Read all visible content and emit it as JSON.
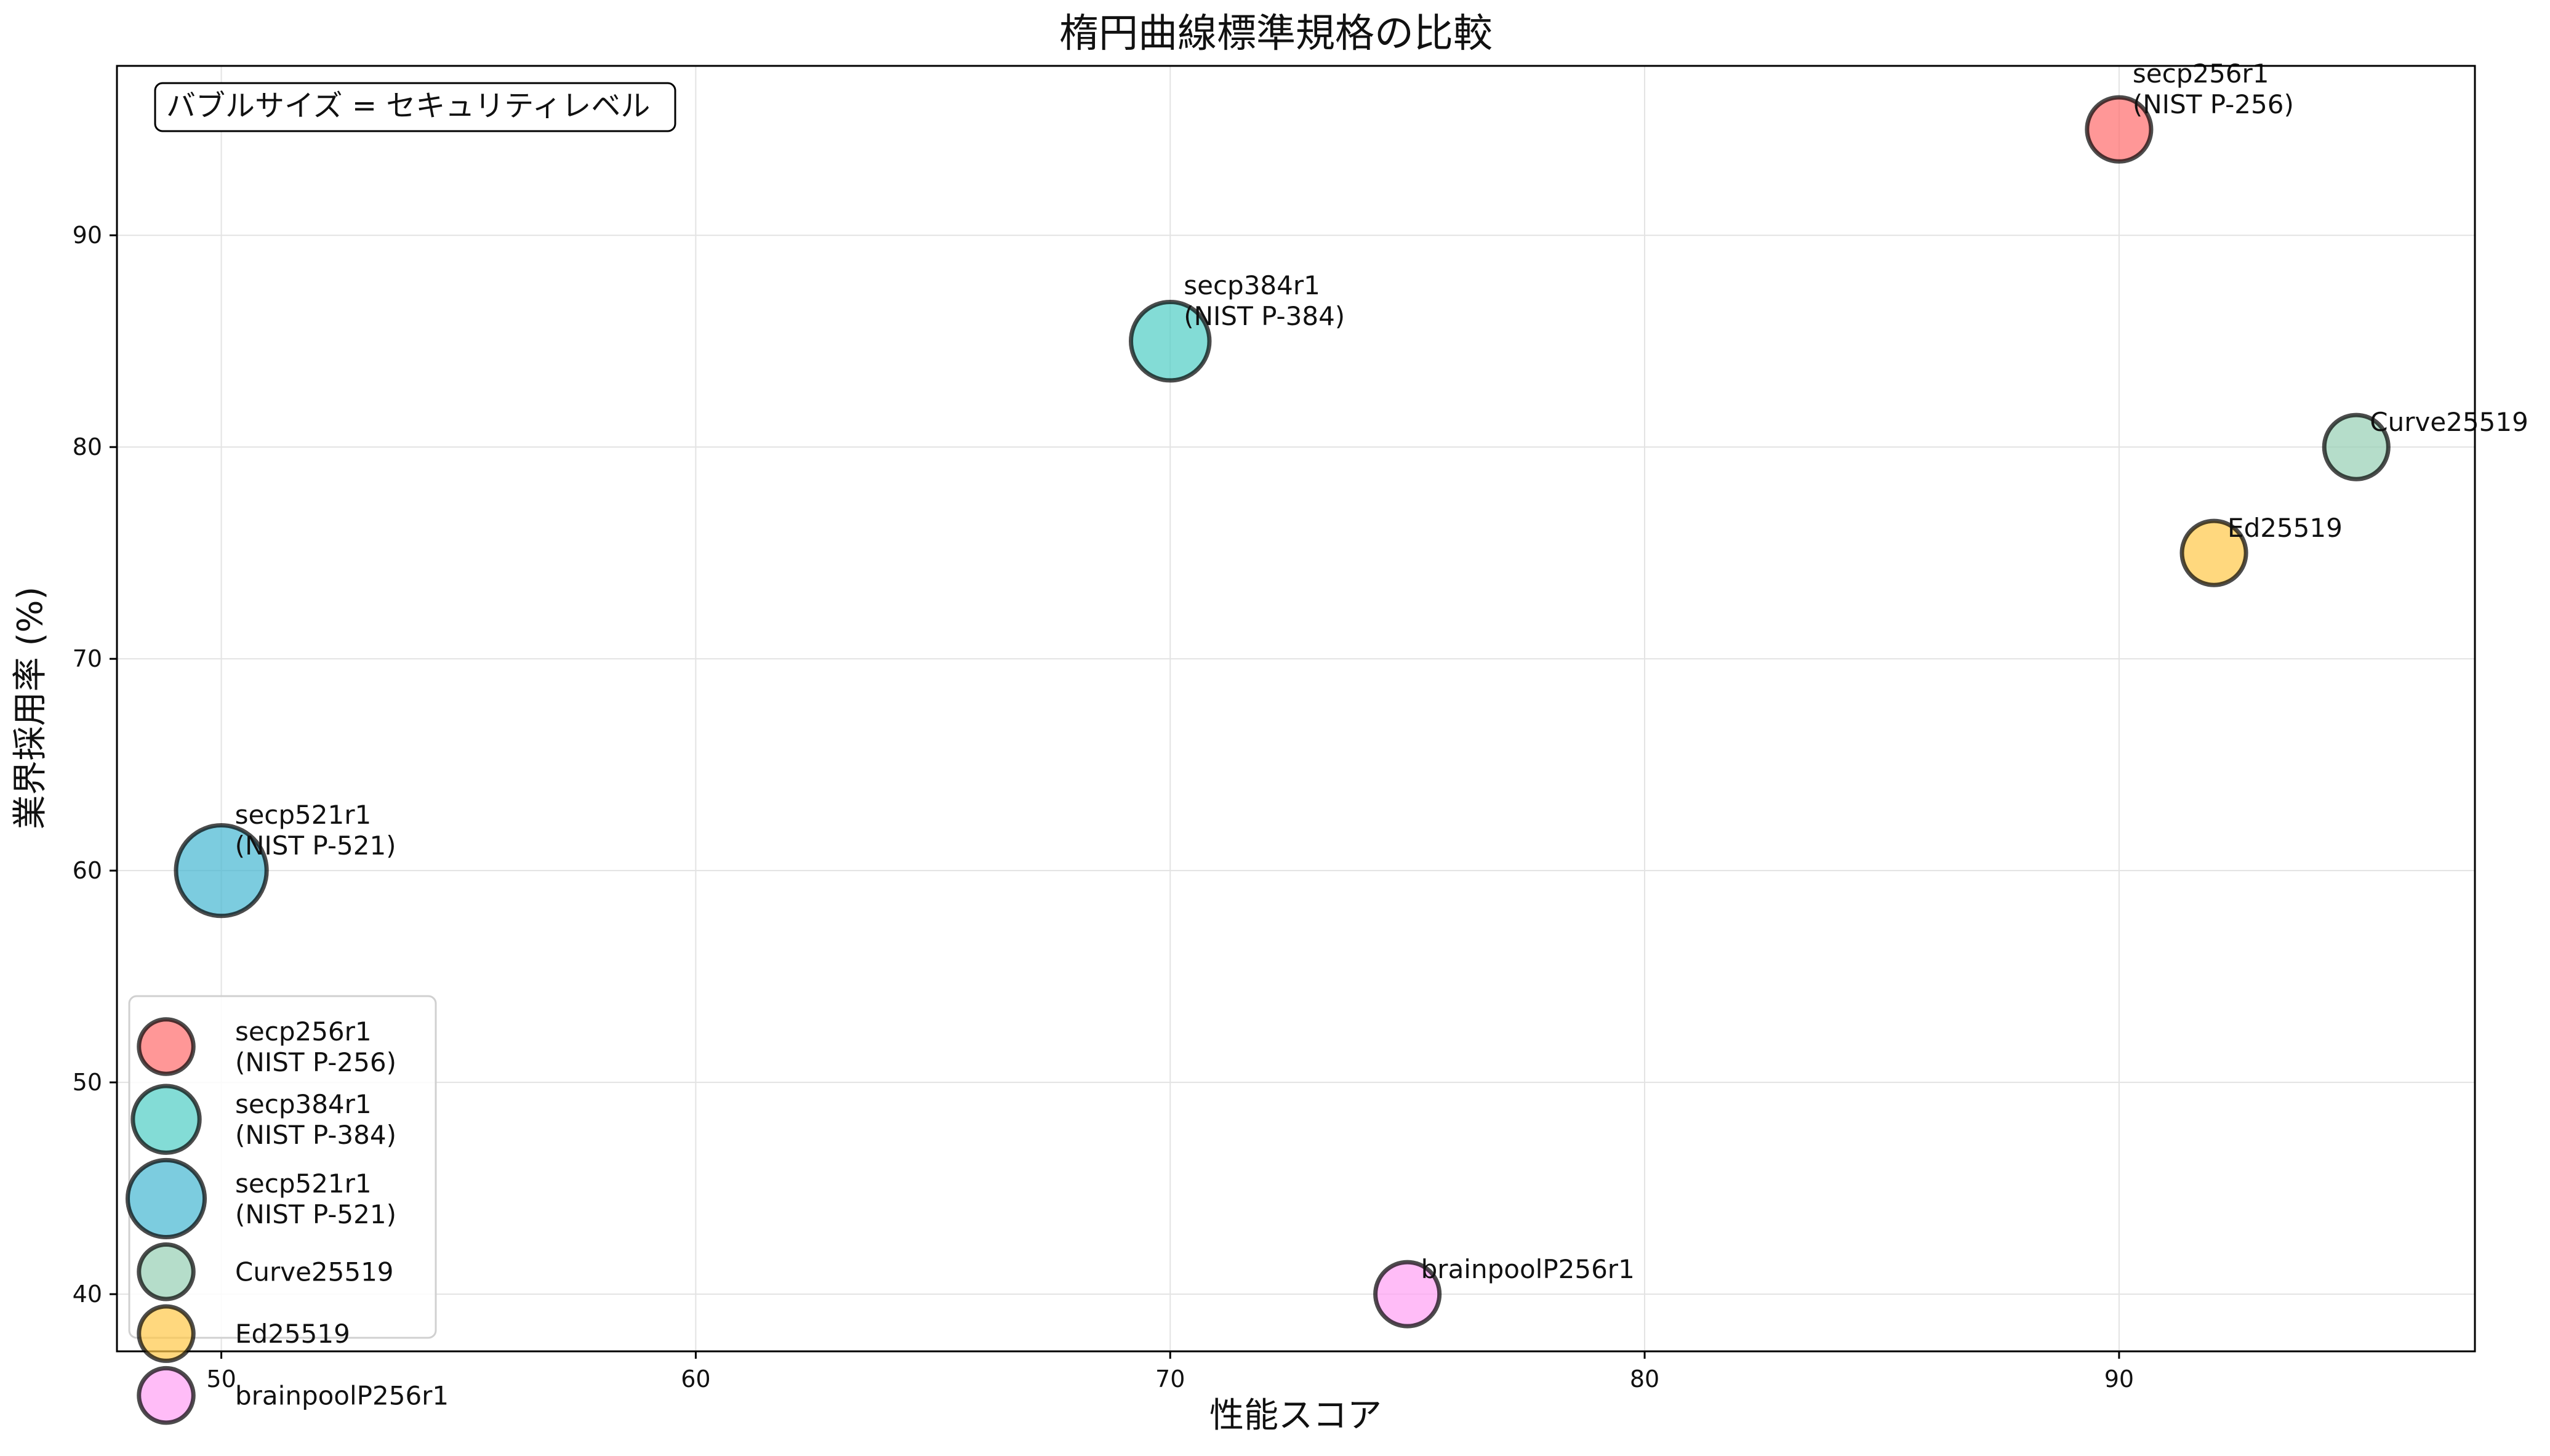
{
  "chart_data": {
    "type": "scatter",
    "title": "楕円曲線標準規格の比較",
    "xlabel": "性能スコア",
    "ylabel": "業界採用率 (%)",
    "xlim": [
      47.8,
      97.5
    ],
    "ylim": [
      37.3,
      98.0
    ],
    "xticks": [
      50,
      60,
      70,
      80,
      90
    ],
    "yticks": [
      40,
      50,
      60,
      70,
      80,
      90
    ],
    "grid": true,
    "legend_position": "lower-left",
    "annotation": "バブルサイズ = セキュリティレベル",
    "series": [
      {
        "name": "secp256r1\n(NIST P-256)",
        "x": 90,
        "y": 95,
        "size": 128,
        "color": "#FF6B6B"
      },
      {
        "name": "secp384r1\n(NIST P-384)",
        "x": 70,
        "y": 85,
        "size": 192,
        "color": "#4ECDC4"
      },
      {
        "name": "secp521r1\n(NIST P-521)",
        "x": 50,
        "y": 60,
        "size": 256,
        "color": "#45B7D1"
      },
      {
        "name": "Curve25519",
        "x": 95,
        "y": 80,
        "size": 128,
        "color": "#96CEB4"
      },
      {
        "name": "Ed25519",
        "x": 92,
        "y": 75,
        "size": 128,
        "color": "#FFC847"
      },
      {
        "name": "brainpoolP256r1",
        "x": 75,
        "y": 40,
        "size": 128,
        "color": "#FF9FF3"
      }
    ]
  }
}
